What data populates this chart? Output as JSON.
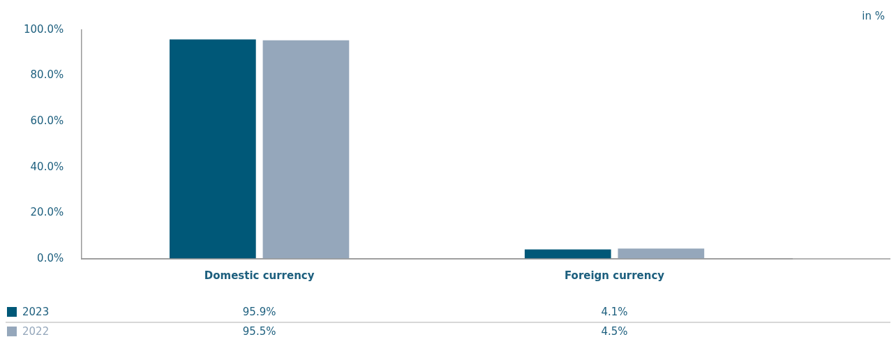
{
  "chart_data": {
    "type": "bar",
    "ylabel": "in %",
    "categories": [
      "Domestic currency",
      "Foreign currency"
    ],
    "series": [
      {
        "name": "2023",
        "color": "#005878",
        "values": [
          95.9,
          4.1
        ],
        "value_labels": [
          "95.9%",
          "4.1%"
        ]
      },
      {
        "name": "2022",
        "color": "#95a7bb",
        "values": [
          95.5,
          4.5
        ],
        "value_labels": [
          "95.5%",
          "4.5%"
        ]
      }
    ],
    "ylim": [
      0,
      100
    ],
    "yticks": [
      {
        "value": 0,
        "label": "0.0%"
      },
      {
        "value": 20,
        "label": "20.0%"
      },
      {
        "value": 40,
        "label": "40.0%"
      },
      {
        "value": 60,
        "label": "60.0%"
      },
      {
        "value": 80,
        "label": "80.0%"
      },
      {
        "value": 100,
        "label": "100.0%"
      }
    ],
    "grid": false,
    "legend": "bottom"
  }
}
